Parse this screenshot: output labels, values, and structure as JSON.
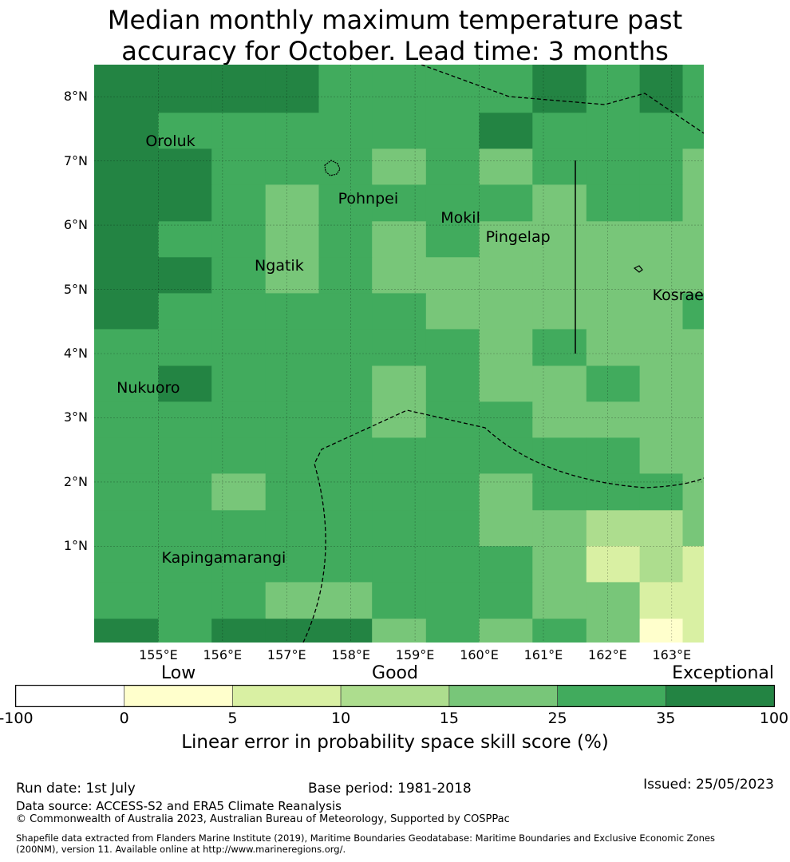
{
  "title_line1": "Median monthly maximum temperature past",
  "title_line2": "accuracy for October. Lead time: 3 months",
  "lat_labels": [
    "8°N",
    "7°N",
    "6°N",
    "5°N",
    "4°N",
    "3°N",
    "2°N",
    "1°N"
  ],
  "lon_labels": [
    "155°E",
    "156°E",
    "157°E",
    "158°E",
    "159°E",
    "160°E",
    "161°E",
    "162°E",
    "163°E"
  ],
  "places": [
    {
      "name": "Oroluk",
      "lon": 154.8,
      "lat": 7.3
    },
    {
      "name": "Pohnpei",
      "lon": 157.8,
      "lat": 6.4
    },
    {
      "name": "Mokil",
      "lon": 159.4,
      "lat": 6.1
    },
    {
      "name": "Pingelap",
      "lon": 160.1,
      "lat": 5.8
    },
    {
      "name": "Ngatik",
      "lon": 156.5,
      "lat": 5.35
    },
    {
      "name": "Kosrae",
      "lon": 162.7,
      "lat": 4.9
    },
    {
      "name": "Nukuoro",
      "lon": 154.35,
      "lat": 3.45
    },
    {
      "name": "Kapingamarangi",
      "lon": 155.05,
      "lat": 0.8
    }
  ],
  "colorbar": {
    "categories": [
      {
        "label": "Low",
        "pos": 1.5
      },
      {
        "label": "Good",
        "pos": 3.5
      },
      {
        "label": "Exceptional",
        "pos": 6.0
      }
    ],
    "ticks": [
      "-100",
      "0",
      "5",
      "10",
      "15",
      "25",
      "35",
      "100"
    ],
    "colors": [
      "#ffffff",
      "#ffffcc",
      "#d9f0a3",
      "#addd8e",
      "#78c679",
      "#41ab5d",
      "#238443"
    ],
    "label": "Linear error in probability space skill score (%)"
  },
  "footer": {
    "run_date": "Run date: 1st July",
    "base_period": "Base period: 1981-2018",
    "issued": "Issued: 25/05/2023",
    "data_source": "Data source: ACCESS-S2 and ERA5 Climate Reanalysis",
    "copyright": "© Commonwealth of Australia 2023, Australian Bureau of Meteorology, Supported by COSPPac",
    "shapefile_line1": "Shapefile data extracted from Flanders Marine Institute (2019), Maritime Boundaries Geodatabase: Maritime Boundaries and Exclusive Economic Zones",
    "shapefile_line2": "(200NM), version 11. Available online at http://www.marineregions.org/."
  },
  "map_data": {
    "lon_range": [
      154.0,
      163.5
    ],
    "lat_range": [
      -0.5,
      8.5
    ],
    "grid_columns_lon": [
      154.5,
      155.0,
      155.83,
      156.67,
      157.5,
      158.33,
      159.17,
      160.0,
      160.83,
      161.67,
      162.5,
      163.17,
      163.5
    ],
    "grid_rows_lat": [
      8.5,
      8.31,
      7.75,
      7.19,
      6.63,
      6.06,
      5.5,
      4.94,
      4.38,
      3.81,
      3.25,
      2.69,
      2.13,
      1.56,
      1.0,
      0.44,
      -0.13,
      -0.5
    ],
    "cell_classes": [
      [
        6,
        6,
        6,
        6,
        5,
        5,
        5,
        5,
        6,
        5,
        6,
        5
      ],
      [
        6,
        6,
        6,
        6,
        5,
        5,
        5,
        5,
        6,
        5,
        6,
        5
      ],
      [
        6,
        5,
        5,
        5,
        5,
        5,
        5,
        6,
        5,
        5,
        5,
        5
      ],
      [
        6,
        6,
        5,
        5,
        5,
        4,
        5,
        4,
        5,
        5,
        5,
        4
      ],
      [
        6,
        6,
        5,
        4,
        5,
        5,
        5,
        5,
        4,
        5,
        5,
        4
      ],
      [
        6,
        5,
        5,
        4,
        5,
        4,
        5,
        4,
        4,
        4,
        4,
        4
      ],
      [
        6,
        6,
        5,
        4,
        5,
        4,
        4,
        4,
        4,
        4,
        4,
        4
      ],
      [
        6,
        5,
        5,
        5,
        5,
        5,
        4,
        4,
        4,
        4,
        4,
        5
      ],
      [
        5,
        5,
        5,
        5,
        5,
        5,
        5,
        4,
        5,
        4,
        4,
        4
      ],
      [
        5,
        6,
        5,
        5,
        5,
        4,
        5,
        4,
        4,
        5,
        4,
        4
      ],
      [
        5,
        5,
        5,
        5,
        5,
        4,
        5,
        5,
        4,
        4,
        4,
        4
      ],
      [
        5,
        5,
        5,
        5,
        5,
        5,
        5,
        5,
        5,
        5,
        4,
        4
      ],
      [
        5,
        5,
        4,
        5,
        5,
        5,
        5,
        4,
        5,
        5,
        5,
        4
      ],
      [
        5,
        5,
        5,
        5,
        5,
        5,
        5,
        4,
        4,
        3,
        3,
        4
      ],
      [
        5,
        5,
        5,
        5,
        5,
        5,
        5,
        5,
        4,
        2,
        3,
        2
      ],
      [
        5,
        5,
        5,
        4,
        4,
        5,
        5,
        5,
        4,
        4,
        2,
        2
      ],
      [
        6,
        5,
        6,
        6,
        6,
        4,
        5,
        4,
        5,
        4,
        1,
        2
      ]
    ]
  }
}
